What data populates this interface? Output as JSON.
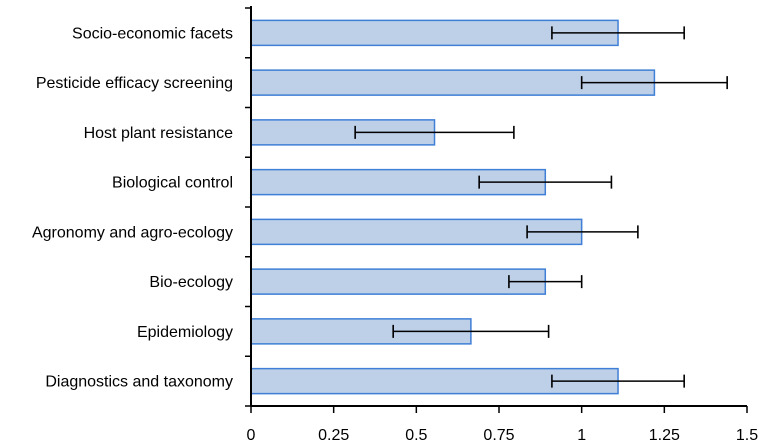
{
  "chart_data": {
    "type": "bar",
    "orientation": "horizontal",
    "title": "",
    "xlabel": "",
    "ylabel": "",
    "categories": [
      "Socio-economic facets",
      "Pesticide efficacy screening",
      "Host plant resistance",
      "Biological control",
      "Agronomy and agro-ecology",
      "Bio-ecology",
      "Epidemiology",
      "Diagnostics and taxonomy"
    ],
    "values": [
      1.11,
      1.22,
      0.555,
      0.89,
      1.0,
      0.89,
      0.665,
      1.11
    ],
    "error_low": [
      0.2,
      0.22,
      0.24,
      0.2,
      0.165,
      0.11,
      0.235,
      0.2
    ],
    "error_high": [
      0.2,
      0.22,
      0.24,
      0.2,
      0.17,
      0.11,
      0.235,
      0.2
    ],
    "xlim": [
      0,
      1.5
    ],
    "xticks": [
      0,
      0.25,
      0.5,
      0.75,
      1,
      1.25,
      1.5
    ],
    "xtick_labels": [
      "0",
      "0.25",
      "0.5",
      "0.75",
      "1",
      "1.25",
      "1.5"
    ],
    "grid": false,
    "legend": "none",
    "colors": {
      "bar_fill": "#bdd0e8",
      "bar_edge": "#3f7fd6",
      "axis": "#000000",
      "error_bar": "#000000"
    }
  }
}
